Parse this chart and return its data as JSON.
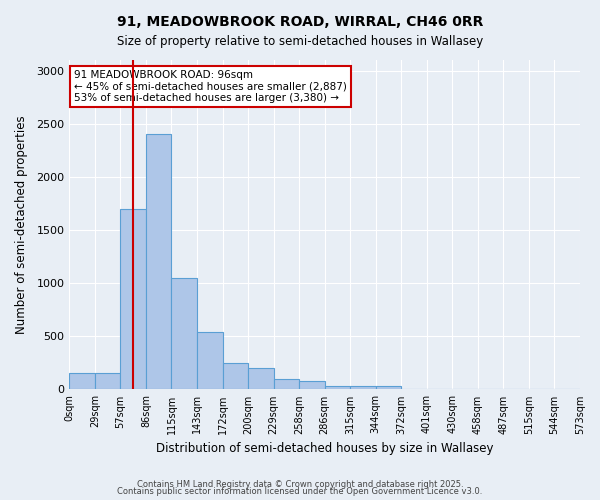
{
  "title_line1": "91, MEADOWBROOK ROAD, WIRRAL, CH46 0RR",
  "title_line2": "Size of property relative to semi-detached houses in Wallasey",
  "xlabel": "Distribution of semi-detached houses by size in Wallasey",
  "ylabel": "Number of semi-detached properties",
  "bar_values": [
    150,
    150,
    1700,
    2400,
    1050,
    540,
    250,
    200,
    100,
    80,
    30,
    30,
    30,
    0,
    0,
    0,
    0,
    0,
    0,
    0
  ],
  "bin_labels": [
    "0sqm",
    "29sqm",
    "57sqm",
    "86sqm",
    "115sqm",
    "143sqm",
    "172sqm",
    "200sqm",
    "229sqm",
    "258sqm",
    "286sqm",
    "315sqm",
    "344sqm",
    "372sqm",
    "401sqm",
    "430sqm",
    "458sqm",
    "487sqm",
    "515sqm",
    "544sqm",
    "573sqm"
  ],
  "bar_color": "#aec6e8",
  "bar_edge_color": "#5a9fd4",
  "vline_color": "#cc0000",
  "vline_position": 2.5,
  "annotation_text": "91 MEADOWBROOK ROAD: 96sqm\n← 45% of semi-detached houses are smaller (2,887)\n53% of semi-detached houses are larger (3,380) →",
  "annotation_box_color": "#ffffff",
  "annotation_box_edge": "#cc0000",
  "ylim": [
    0,
    3100
  ],
  "yticks": [
    0,
    500,
    1000,
    1500,
    2000,
    2500,
    3000
  ],
  "bg_color": "#e8eef5",
  "plot_bg_color": "#e8eef5",
  "footer1": "Contains HM Land Registry data © Crown copyright and database right 2025.",
  "footer2": "Contains public sector information licensed under the Open Government Licence v3.0."
}
